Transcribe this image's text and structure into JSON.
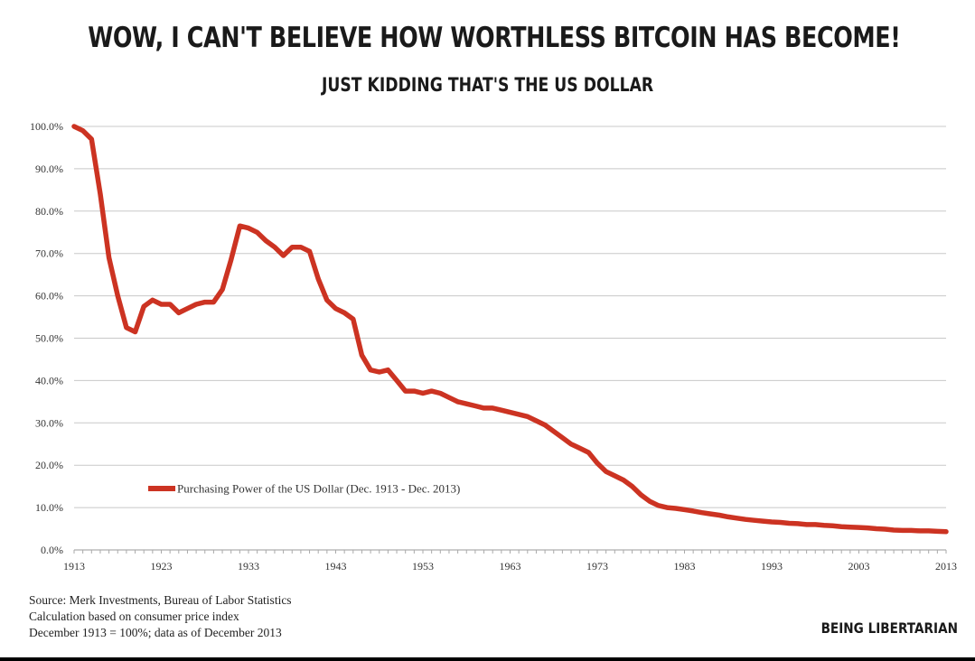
{
  "headline": "WOW, I CAN'T BELIEVE HOW WORTHLESS BITCOIN HAS BECOME!",
  "subheadline": "JUST KIDDING THAT'S THE US DOLLAR",
  "source_lines": [
    "Source: Merk Investments, Bureau of Labor Statistics",
    "Calculation based on consumer price index",
    "December 1913 = 100%; data as of December 2013"
  ],
  "credit": "BEING LIBERTARIAN",
  "chart_data": {
    "type": "line",
    "xlabel": "",
    "ylabel": "",
    "xlim": [
      1913,
      2013
    ],
    "ylim": [
      0,
      100
    ],
    "grid": true,
    "legend_position": "lower-left",
    "x_ticks": [
      "1913",
      "1923",
      "1933",
      "1943",
      "1953",
      "1963",
      "1973",
      "1983",
      "1993",
      "2003",
      "2013"
    ],
    "y_ticks": [
      "0.0%",
      "10.0%",
      "20.0%",
      "30.0%",
      "40.0%",
      "50.0%",
      "60.0%",
      "70.0%",
      "80.0%",
      "90.0%",
      "100.0%"
    ],
    "series": [
      {
        "name": "Purchasing Power of the US Dollar (Dec. 1913 - Dec. 2013)",
        "color": "#cc3322",
        "x": [
          1913,
          1914,
          1915,
          1916,
          1917,
          1918,
          1919,
          1920,
          1921,
          1922,
          1923,
          1924,
          1925,
          1926,
          1927,
          1928,
          1929,
          1930,
          1931,
          1932,
          1933,
          1934,
          1935,
          1936,
          1937,
          1938,
          1939,
          1940,
          1941,
          1942,
          1943,
          1944,
          1945,
          1946,
          1947,
          1948,
          1949,
          1950,
          1951,
          1952,
          1953,
          1954,
          1955,
          1956,
          1957,
          1958,
          1959,
          1960,
          1961,
          1962,
          1963,
          1964,
          1965,
          1966,
          1967,
          1968,
          1969,
          1970,
          1971,
          1972,
          1973,
          1974,
          1975,
          1976,
          1977,
          1978,
          1979,
          1980,
          1981,
          1982,
          1983,
          1984,
          1985,
          1986,
          1987,
          1988,
          1989,
          1990,
          1991,
          1992,
          1993,
          1994,
          1995,
          1996,
          1997,
          1998,
          1999,
          2000,
          2001,
          2002,
          2003,
          2004,
          2005,
          2006,
          2007,
          2008,
          2009,
          2010,
          2011,
          2012,
          2013
        ],
        "values": [
          100.0,
          99.0,
          97.0,
          84.0,
          69.0,
          60.0,
          52.5,
          51.5,
          57.5,
          59.0,
          58.0,
          58.0,
          56.0,
          57.0,
          58.0,
          58.5,
          58.5,
          61.5,
          68.5,
          76.5,
          76.0,
          75.0,
          73.0,
          71.5,
          69.5,
          71.5,
          71.5,
          70.5,
          64.0,
          59.0,
          57.0,
          56.0,
          54.5,
          46.0,
          42.5,
          42.0,
          42.5,
          40.0,
          37.5,
          37.5,
          37.0,
          37.5,
          37.0,
          36.0,
          35.0,
          34.5,
          34.0,
          33.5,
          33.5,
          33.0,
          32.5,
          32.0,
          31.5,
          30.5,
          29.5,
          28.0,
          26.5,
          25.0,
          24.0,
          23.0,
          20.5,
          18.5,
          17.5,
          16.5,
          15.0,
          13.0,
          11.5,
          10.5,
          10.0,
          9.8,
          9.5,
          9.2,
          8.8,
          8.5,
          8.2,
          7.8,
          7.5,
          7.2,
          7.0,
          6.8,
          6.6,
          6.5,
          6.3,
          6.2,
          6.0,
          6.0,
          5.8,
          5.7,
          5.5,
          5.4,
          5.3,
          5.2,
          5.0,
          4.9,
          4.7,
          4.6,
          4.6,
          4.5,
          4.5,
          4.4,
          4.3
        ]
      }
    ]
  }
}
